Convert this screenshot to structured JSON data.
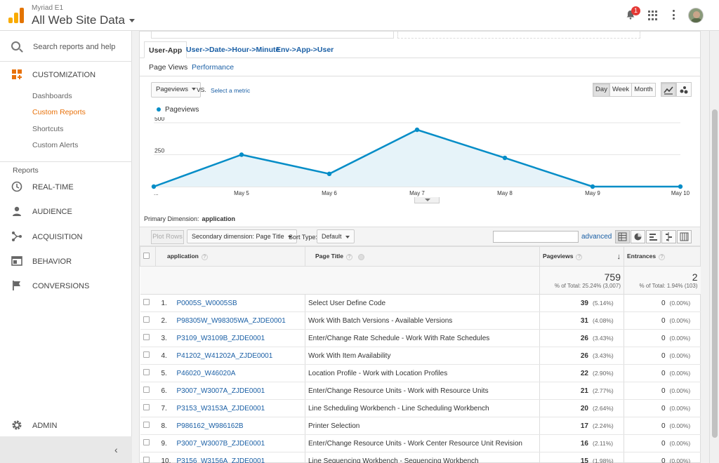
{
  "header": {
    "account_small": "Myriad E1",
    "property": "All Web Site Data",
    "notification_count": "1"
  },
  "sidebar": {
    "search_label": "Search reports and help",
    "customization_label": "CUSTOMIZATION",
    "sub_items": [
      "Dashboards",
      "Custom Reports",
      "Shortcuts",
      "Custom Alerts"
    ],
    "reports_label": "Reports",
    "nav_items": [
      "REAL-TIME",
      "AUDIENCE",
      "ACQUISITION",
      "BEHAVIOR",
      "CONVERSIONS"
    ],
    "admin_label": "ADMIN"
  },
  "tabs": [
    "User-App",
    "User->Date->Hour->Minute",
    "Env->App->User"
  ],
  "subtabs": [
    "Page Views",
    "Performance"
  ],
  "controls": {
    "metric": "Pageviews",
    "vs": "VS.",
    "select_metric": "Select a metric",
    "day": "Day",
    "week": "Week",
    "month": "Month"
  },
  "chart_data": {
    "type": "line",
    "legend": "Pageviews",
    "x": [
      "...",
      "May 5",
      "May 6",
      "May 7",
      "May 8",
      "May 9",
      "May 10"
    ],
    "series": [
      {
        "name": "Pageviews",
        "values": [
          0,
          250,
          100,
          445,
          225,
          0,
          0
        ]
      }
    ],
    "ylim": [
      0,
      500
    ],
    "yticks": [
      "500",
      "250"
    ],
    "color": "#058dc7",
    "fill": "#e6f3f9"
  },
  "primary_dimension": {
    "label": "Primary Dimension:",
    "value": "application"
  },
  "toolbar": {
    "plot_rows": "Plot Rows",
    "secondary": "Secondary dimension: Page Title",
    "sort_label": "Sort Type:",
    "sort_value": "Default",
    "advanced": "advanced"
  },
  "table": {
    "headers": {
      "application": "application",
      "page_title": "Page Title",
      "pageviews": "Pageviews",
      "entrances": "Entrances"
    },
    "totals": {
      "pageviews": "759",
      "pageviews_sub": "% of Total: 25.24% (3,007)",
      "entrances": "2",
      "entrances_sub": "% of Total: 1.94% (103)"
    },
    "rows": [
      {
        "n": "1.",
        "app": "P0005S_W0005SB",
        "title": "Select User Define Code",
        "pv": "39",
        "pvp": "(5.14%)",
        "en": "0",
        "enp": "(0.00%)"
      },
      {
        "n": "2.",
        "app": "P98305W_W98305WA_ZJDE0001",
        "title": "Work With Batch Versions - Available Versions",
        "pv": "31",
        "pvp": "(4.08%)",
        "en": "0",
        "enp": "(0.00%)"
      },
      {
        "n": "3.",
        "app": "P3109_W3109B_ZJDE0001",
        "title": "Enter/Change Rate Schedule - Work With Rate Schedules",
        "pv": "26",
        "pvp": "(3.43%)",
        "en": "0",
        "enp": "(0.00%)"
      },
      {
        "n": "4.",
        "app": "P41202_W41202A_ZJDE0001",
        "title": "Work With Item Availability",
        "pv": "26",
        "pvp": "(3.43%)",
        "en": "0",
        "enp": "(0.00%)"
      },
      {
        "n": "5.",
        "app": "P46020_W46020A",
        "title": "Location Profile - Work with Location Profiles",
        "pv": "22",
        "pvp": "(2.90%)",
        "en": "0",
        "enp": "(0.00%)"
      },
      {
        "n": "6.",
        "app": "P3007_W3007A_ZJDE0001",
        "title": "Enter/Change Resource Units - Work with Resource Units",
        "pv": "21",
        "pvp": "(2.77%)",
        "en": "0",
        "enp": "(0.00%)"
      },
      {
        "n": "7.",
        "app": "P3153_W3153A_ZJDE0001",
        "title": "Line Scheduling Workbench - Line Scheduling Workbench",
        "pv": "20",
        "pvp": "(2.64%)",
        "en": "0",
        "enp": "(0.00%)"
      },
      {
        "n": "8.",
        "app": "P986162_W986162B",
        "title": "Printer Selection",
        "pv": "17",
        "pvp": "(2.24%)",
        "en": "0",
        "enp": "(0.00%)"
      },
      {
        "n": "9.",
        "app": "P3007_W3007B_ZJDE0001",
        "title": "Enter/Change Resource Units - Work Center Resource Unit Revision",
        "pv": "16",
        "pvp": "(2.11%)",
        "en": "0",
        "enp": "(0.00%)"
      },
      {
        "n": "10.",
        "app": "P3156_W3156A_ZJDE0001",
        "title": "Line Sequencing Workbench - Sequencing Workbench",
        "pv": "15",
        "pvp": "(1.98%)",
        "en": "0",
        "enp": "(0.00%)"
      }
    ]
  }
}
